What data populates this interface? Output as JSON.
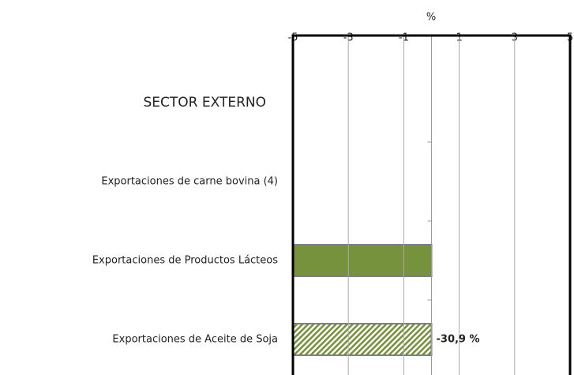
{
  "chart_data": {
    "type": "bar",
    "orientation": "horizontal",
    "xlabel": "%",
    "categories": [
      "SECTOR EXTERNO",
      "Exportaciones de carne bovina (4)",
      "Exportaciones de Productos Lácteos",
      "Exportaciones de Aceite de Soja"
    ],
    "values": [
      null,
      null,
      -5,
      -30.9
    ],
    "value_labels": [
      null,
      null,
      null,
      "-30,9 %"
    ],
    "hatched": [
      false,
      false,
      false,
      true
    ],
    "color": "#76923c",
    "xlim": [
      -5,
      5
    ],
    "xticks": [
      -5,
      -3,
      -1,
      1,
      3,
      5
    ],
    "grid": true
  }
}
